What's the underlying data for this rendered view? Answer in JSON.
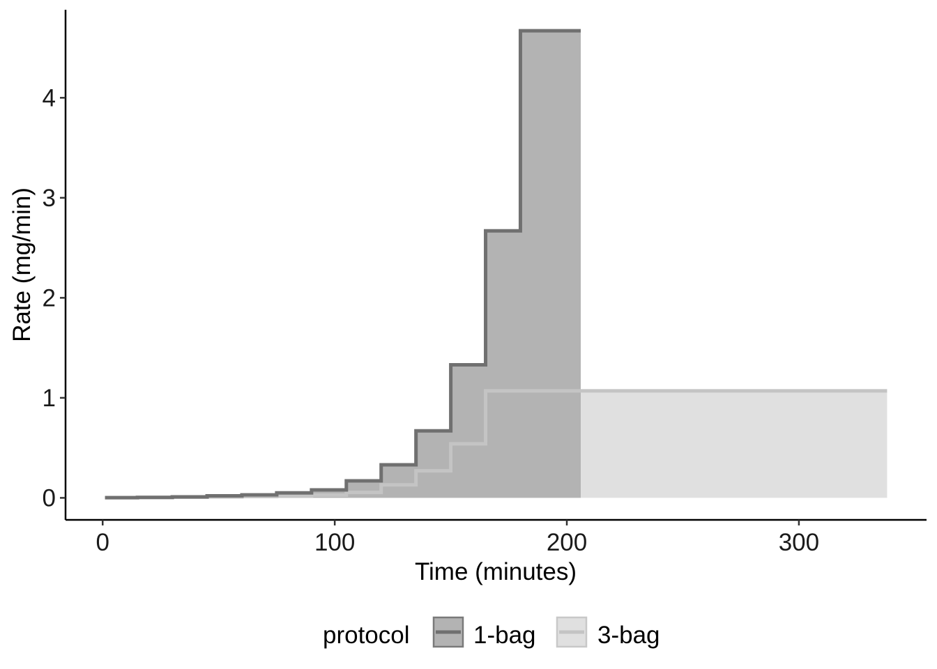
{
  "chart_data": {
    "type": "area",
    "xlabel": "Time (minutes)",
    "ylabel": "Rate (mg/min)",
    "xlim": [
      -16,
      355
    ],
    "ylim": [
      -0.22,
      4.88
    ],
    "x_ticks": [
      0,
      100,
      200,
      300
    ],
    "y_ticks": [
      0,
      1,
      2,
      3,
      4
    ],
    "grid": false,
    "legend": {
      "title": "protocol",
      "position": "bottom"
    },
    "series": [
      {
        "name": "3-bag",
        "line_color": "#c4c4c4",
        "fill_color": "#e0e0e0",
        "x": [
          1,
          15,
          30,
          45,
          60,
          75,
          90,
          105,
          120,
          135,
          150,
          165,
          338
        ],
        "y": [
          0.002,
          0.004,
          0.006,
          0.009,
          0.013,
          0.018,
          0.027,
          0.054,
          0.13,
          0.27,
          0.54,
          1.07,
          1.07
        ]
      },
      {
        "name": "1-bag",
        "line_color": "#707070",
        "fill_color": "#b3b3b3",
        "x": [
          1,
          15,
          30,
          45,
          60,
          75,
          90,
          105,
          120,
          135,
          150,
          165,
          180,
          206
        ],
        "y": [
          0.002,
          0.005,
          0.01,
          0.02,
          0.03,
          0.05,
          0.08,
          0.17,
          0.33,
          0.67,
          1.33,
          2.67,
          4.67,
          4.67
        ]
      }
    ]
  }
}
